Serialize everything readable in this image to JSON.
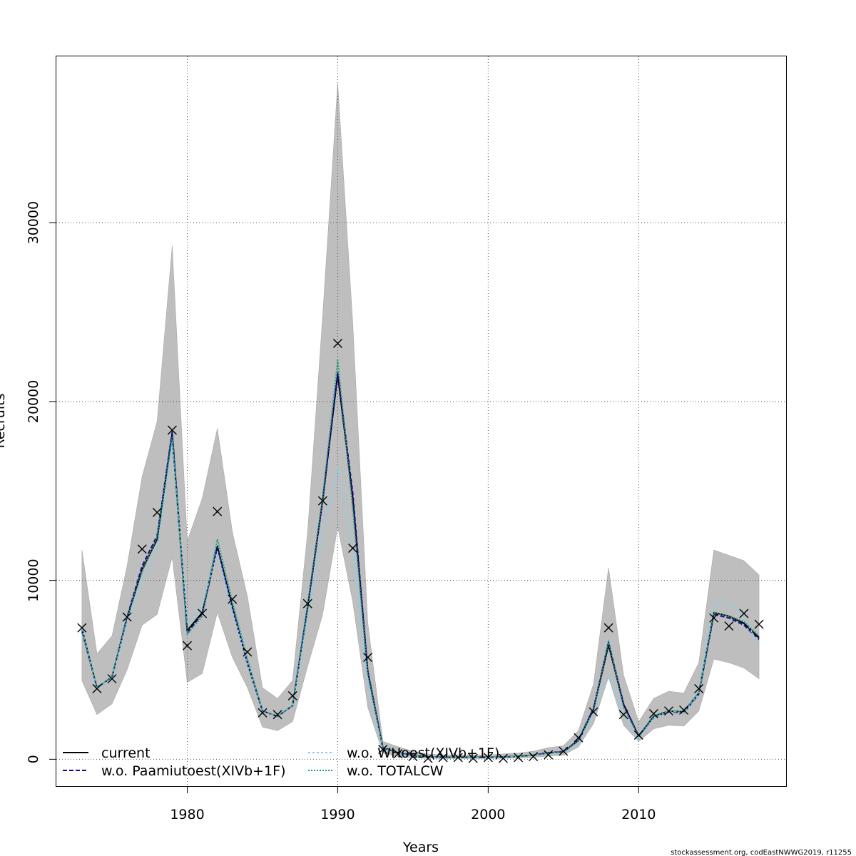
{
  "chart_data": {
    "type": "line",
    "xlabel": "Years",
    "ylabel": "Recruits",
    "xlim": [
      1971.3,
      2019.8
    ],
    "ylim": [
      -1500,
      39300
    ],
    "x_ticks": [
      "1980",
      "1990",
      "2000",
      "2010"
    ],
    "y_ticks": [
      "0",
      "10000",
      "20000",
      "30000"
    ],
    "grid": true,
    "legend_placement": "bottom",
    "credit": "stockassessment.org, codEastNWWG2019, r11255",
    "x": [
      1973,
      1974,
      1975,
      1976,
      1977,
      1978,
      1979,
      1980,
      1981,
      1982,
      1983,
      1984,
      1985,
      1986,
      1987,
      1988,
      1989,
      1990,
      1991,
      1992,
      1993,
      1994,
      1995,
      1996,
      1997,
      1998,
      1999,
      2000,
      2001,
      2002,
      2003,
      2004,
      2005,
      2006,
      2007,
      2008,
      2009,
      2010,
      2011,
      2012,
      2013,
      2014,
      2015,
      2016,
      2017,
      2018
    ],
    "confidence_band": {
      "color": "#bebebe",
      "upper": [
        11700,
        5900,
        6900,
        10800,
        15800,
        18900,
        28700,
        12200,
        14600,
        18500,
        12700,
        9100,
        4000,
        3400,
        4400,
        12700,
        24800,
        37800,
        24400,
        7600,
        1000,
        700,
        450,
        300,
        250,
        250,
        250,
        250,
        300,
        350,
        450,
        650,
        750,
        1600,
        4200,
        10700,
        4700,
        2100,
        3400,
        3800,
        3700,
        5400,
        11700,
        11400,
        11100,
        10300
      ],
      "lower": [
        4400,
        2500,
        3100,
        5000,
        7500,
        8100,
        11300,
        4300,
        4800,
        8200,
        5700,
        4000,
        1800,
        1600,
        2100,
        5200,
        8100,
        13000,
        8800,
        2900,
        350,
        150,
        80,
        50,
        40,
        40,
        40,
        40,
        50,
        60,
        100,
        180,
        220,
        700,
        2000,
        4600,
        1900,
        1000,
        1700,
        1900,
        1850,
        2700,
        5600,
        5400,
        5100,
        4500
      ]
    },
    "series": [
      {
        "name": "current",
        "color": "#000000",
        "dash": "",
        "values": [
          7300,
          4000,
          4600,
          7900,
          10600,
          12300,
          18200,
          7200,
          8200,
          11900,
          8500,
          5400,
          2700,
          2400,
          3000,
          8500,
          14500,
          21500,
          14600,
          4900,
          650,
          360,
          220,
          140,
          110,
          110,
          110,
          110,
          130,
          160,
          230,
          360,
          410,
          1050,
          2800,
          6400,
          3050,
          1300,
          2400,
          2700,
          2650,
          3700,
          8200,
          8000,
          7600,
          6800
        ]
      },
      {
        "name": "w.o. Paamiutoest(XIVb+1F)",
        "color": "#1a0a8c",
        "dash": "6,3",
        "values": [
          7150,
          4000,
          4600,
          7950,
          10800,
          12500,
          18300,
          7050,
          8150,
          11850,
          8450,
          5350,
          2700,
          2400,
          3000,
          8450,
          14400,
          21600,
          14900,
          4950,
          660,
          370,
          230,
          145,
          115,
          110,
          110,
          110,
          130,
          165,
          240,
          370,
          420,
          1080,
          2850,
          6550,
          3100,
          1300,
          2350,
          2650,
          2600,
          3650,
          8100,
          7900,
          7500,
          6700
        ]
      },
      {
        "name": "w.o. WHoest(XIVb+1F)",
        "color": "#87ceeb",
        "dash": "3,3",
        "values": [
          7300,
          4000,
          4600,
          7700,
          9900,
          11600,
          17800,
          7600,
          8600,
          11600,
          8300,
          5400,
          2700,
          2400,
          3000,
          8000,
          12500,
          16300,
          11700,
          4300,
          600,
          330,
          200,
          130,
          100,
          100,
          100,
          100,
          120,
          150,
          210,
          330,
          380,
          950,
          2500,
          4600,
          2400,
          1100,
          2300,
          2700,
          2600,
          3700,
          8600,
          8800,
          8000,
          6300
        ]
      },
      {
        "name": "w.o. TOTALCW",
        "color": "#1e9b7a",
        "dash": "2,2",
        "values": [
          7200,
          4000,
          4600,
          7900,
          10500,
          12400,
          18000,
          7000,
          8000,
          12300,
          8800,
          5600,
          2700,
          2400,
          3000,
          8600,
          14600,
          22300,
          14000,
          4800,
          640,
          350,
          210,
          135,
          105,
          105,
          105,
          105,
          125,
          155,
          225,
          350,
          400,
          1030,
          2750,
          6600,
          2900,
          1300,
          2400,
          2700,
          2650,
          3750,
          8200,
          8000,
          7700,
          6900
        ]
      }
    ],
    "observed": {
      "marker": "x",
      "values": [
        7350,
        3950,
        4500,
        7950,
        11750,
        13800,
        18400,
        6350,
        8150,
        13850,
        8950,
        6000,
        2600,
        2500,
        3550,
        8700,
        14450,
        23250,
        11800,
        5700,
        550,
        300,
        150,
        50,
        100,
        100,
        50,
        100,
        50,
        100,
        150,
        250,
        450,
        1200,
        2650,
        7350,
        2500,
        1350,
        2550,
        2700,
        2750,
        3950,
        7900,
        7450,
        8150,
        7550
      ]
    }
  }
}
